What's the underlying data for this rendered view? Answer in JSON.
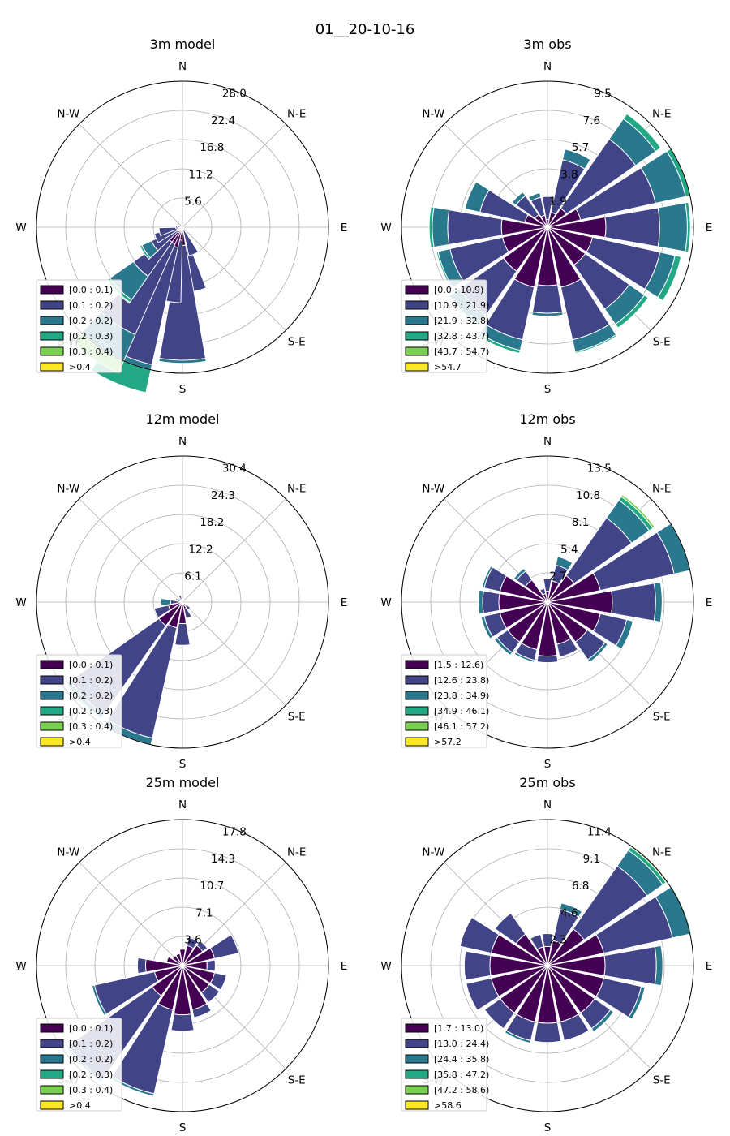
{
  "figure": {
    "title": "01__20-10-16"
  },
  "colors": [
    "#440154",
    "#414487",
    "#2a788e",
    "#22a884",
    "#7ad151",
    "#fde725"
  ],
  "directions": [
    "E",
    "N-E",
    "N",
    "N-W",
    "W",
    "S-W",
    "S",
    "S-E"
  ],
  "chart_data": [
    {
      "type": "windrose",
      "title": "3m model",
      "rticks": [
        "5.6",
        "11.2",
        "16.8",
        "22.4",
        "28.0"
      ],
      "rmax": 28.0,
      "legend": [
        "[0.0 : 0.1)",
        "[0.1 : 0.2)",
        "[0.2 : 0.2)",
        "[0.2 : 0.3)",
        "[0.3 : 0.4)",
        ">0.4"
      ],
      "sectors": [
        {
          "dir": 168.75,
          "v": [
            3.5,
            9.0
          ]
        },
        {
          "dir": 180,
          "v": [
            3.5,
            22.0,
            0.6
          ]
        },
        {
          "dir": 191.25,
          "v": [
            2.5,
            12.0
          ]
        },
        {
          "dir": 202.5,
          "v": [
            4.0,
            23.0,
            5.5,
            0.4
          ]
        },
        {
          "dir": 213.75,
          "v": [
            3.5,
            19.0,
            7.5,
            0.5,
            0.2
          ]
        },
        {
          "dir": 225,
          "v": [
            3.5,
            8.0,
            5.5,
            0.6,
            0.2
          ]
        },
        {
          "dir": 236.25,
          "v": [
            1.0,
            5.5,
            2.0,
            0.4
          ]
        },
        {
          "dir": 247.5,
          "v": [
            1.0,
            4.5
          ]
        },
        {
          "dir": 258.75,
          "v": [
            0.5,
            4.0
          ]
        },
        {
          "dir": 270,
          "v": [
            0.3,
            1.0
          ]
        },
        {
          "dir": 281.25,
          "v": [
            0.3,
            0.7
          ]
        },
        {
          "dir": 0,
          "v": [
            0.2
          ]
        },
        {
          "dir": 22.5,
          "v": [
            0.2
          ]
        },
        {
          "dir": 135,
          "v": [
            0.3,
            0.6
          ]
        },
        {
          "dir": 157.5,
          "v": [
            0.6,
            5.0
          ]
        }
      ]
    },
    {
      "type": "windrose",
      "title": "3m obs",
      "rticks": [
        "1.9",
        "3.8",
        "5.7",
        "7.6",
        "9.5"
      ],
      "rmax": 9.5,
      "legend": [
        "[0.0 : 10.9)",
        "[10.9 : 21.9)",
        "[21.9 : 32.8)",
        "[32.8 : 43.7)",
        "[43.7 : 54.7)",
        ">54.7"
      ],
      "sectors": [
        {
          "dir": 0,
          "v": [
            0.5,
            1.5
          ]
        },
        {
          "dir": 22.5,
          "v": [
            1.0,
            3.5,
            0.7
          ]
        },
        {
          "dir": 45,
          "v": [
            1.5,
            5.5,
            1.6,
            0.4
          ]
        },
        {
          "dir": 67.5,
          "v": [
            2.2,
            5.0,
            2.0,
            0.3
          ]
        },
        {
          "dir": 90,
          "v": [
            3.8,
            3.5,
            1.8,
            0.2
          ]
        },
        {
          "dir": 112.5,
          "v": [
            3.0,
            4.5,
            1.0,
            0.4
          ]
        },
        {
          "dir": 135,
          "v": [
            3.0,
            3.5,
            1.2,
            0.3
          ]
        },
        {
          "dir": 157.5,
          "v": [
            4.0,
            3.5,
            0.8,
            0.1
          ]
        },
        {
          "dir": 180,
          "v": [
            3.8,
            1.8,
            0.2
          ]
        },
        {
          "dir": 202.5,
          "v": [
            4.0,
            3.5,
            0.7,
            0.2
          ]
        },
        {
          "dir": 225,
          "v": [
            3.5,
            3.5,
            0.8
          ]
        },
        {
          "dir": 247.5,
          "v": [
            3.0,
            3.5,
            0.8,
            0.1
          ]
        },
        {
          "dir": 270,
          "v": [
            3.0,
            3.5,
            1.0,
            0.2
          ]
        },
        {
          "dir": 292.5,
          "v": [
            1.5,
            3.0,
            1.0
          ]
        },
        {
          "dir": 315,
          "v": [
            1.0,
            1.5,
            0.3
          ]
        },
        {
          "dir": 337.5,
          "v": [
            0.8,
            1.2,
            0.3
          ]
        }
      ]
    },
    {
      "type": "windrose",
      "title": "12m model",
      "rticks": [
        "6.1",
        "12.2",
        "18.2",
        "24.3",
        "30.4"
      ],
      "rmax": 30.4,
      "legend": [
        "[0.0 : 0.1)",
        "[0.1 : 0.2)",
        "[0.2 : 0.2)",
        "[0.2 : 0.3)",
        "[0.3 : 0.4)",
        ">0.4"
      ],
      "sectors": [
        {
          "dir": 157.5,
          "v": [
            1.5,
            2.0
          ]
        },
        {
          "dir": 180,
          "v": [
            4.5,
            4.5
          ]
        },
        {
          "dir": 202.5,
          "v": [
            5.5,
            23.5,
            1.5,
            0.5
          ]
        },
        {
          "dir": 225,
          "v": [
            6.0,
            22.5,
            1.0,
            0.3
          ]
        },
        {
          "dir": 247.5,
          "v": [
            3.0,
            3.0
          ]
        },
        {
          "dir": 270,
          "v": [
            0.5,
            2.0,
            2.0
          ]
        },
        {
          "dir": 292.5,
          "v": [
            0.5,
            1.0
          ]
        },
        {
          "dir": 337.5,
          "v": [
            0.5,
            1.0
          ]
        },
        {
          "dir": 0,
          "v": [
            0.5,
            0.3
          ]
        },
        {
          "dir": 22.5,
          "v": [
            0.5
          ]
        },
        {
          "dir": 135,
          "v": [
            1.0,
            1.0
          ]
        }
      ]
    },
    {
      "type": "windrose",
      "title": "12m obs",
      "rticks": [
        "2.7",
        "5.4",
        "8.1",
        "10.8",
        "13.5"
      ],
      "rmax": 13.5,
      "legend": [
        "[1.5 : 12.6)",
        "[12.6 : 23.8)",
        "[23.8 : 34.9)",
        "[34.9 : 46.1)",
        "[46.1 : 57.2)",
        ">57.2"
      ],
      "sectors": [
        {
          "dir": 0,
          "v": [
            1.0,
            1.2
          ]
        },
        {
          "dir": 22.5,
          "v": [
            2.0,
            1.5,
            0.8
          ]
        },
        {
          "dir": 45,
          "v": [
            3.0,
            6.5,
            2.0,
            0.4,
            0.2
          ]
        },
        {
          "dir": 67.5,
          "v": [
            5.0,
            7.0,
            1.5,
            0.2
          ]
        },
        {
          "dir": 90,
          "v": [
            6.0,
            4.0,
            0.6
          ]
        },
        {
          "dir": 112.5,
          "v": [
            5.0,
            2.5,
            0.6
          ]
        },
        {
          "dir": 135,
          "v": [
            4.5,
            2.0,
            0.3
          ]
        },
        {
          "dir": 157.5,
          "v": [
            4.0,
            1.2
          ]
        },
        {
          "dir": 180,
          "v": [
            5.0,
            0.6
          ]
        },
        {
          "dir": 202.5,
          "v": [
            4.5,
            1.0,
            0.2
          ]
        },
        {
          "dir": 225,
          "v": [
            4.5,
            1.2,
            0.3
          ]
        },
        {
          "dir": 247.5,
          "v": [
            4.5,
            1.5,
            0.3
          ]
        },
        {
          "dir": 270,
          "v": [
            4.5,
            1.5,
            0.4
          ]
        },
        {
          "dir": 292.5,
          "v": [
            4.5,
            1.5,
            0.2
          ]
        },
        {
          "dir": 315,
          "v": [
            2.5,
            1.0,
            0.3
          ]
        },
        {
          "dir": 337.5,
          "v": [
            0.8,
            0.5
          ]
        }
      ]
    },
    {
      "type": "windrose",
      "title": "25m model",
      "rticks": [
        "3.6",
        "7.1",
        "10.7",
        "14.3",
        "17.8"
      ],
      "rmax": 17.8,
      "legend": [
        "[0.0 : 0.1)",
        "[0.1 : 0.2)",
        "[0.2 : 0.2)",
        "[0.2 : 0.3)",
        "[0.3 : 0.4)",
        ">0.4"
      ],
      "sectors": [
        {
          "dir": 0,
          "v": [
            2.0
          ]
        },
        {
          "dir": 22.5,
          "v": [
            2.5,
            1.0
          ]
        },
        {
          "dir": 45,
          "v": [
            3.0,
            0.7
          ]
        },
        {
          "dir": 67.5,
          "v": [
            4.0,
            3.0
          ]
        },
        {
          "dir": 90,
          "v": [
            3.0,
            1.0
          ]
        },
        {
          "dir": 112.5,
          "v": [
            4.0,
            1.5
          ]
        },
        {
          "dir": 135,
          "v": [
            4.0,
            1.5
          ]
        },
        {
          "dir": 157.5,
          "v": [
            5.5,
            1.0
          ]
        },
        {
          "dir": 180,
          "v": [
            6.0,
            2.0
          ]
        },
        {
          "dir": 202.5,
          "v": [
            5.5,
            10.5,
            0.3
          ]
        },
        {
          "dir": 225,
          "v": [
            4.5,
            12.5,
            0.3
          ]
        },
        {
          "dir": 247.5,
          "v": [
            3.5,
            7.5,
            0.3
          ]
        },
        {
          "dir": 270,
          "v": [
            4.5,
            1.0
          ]
        },
        {
          "dir": 292.5,
          "v": [
            2.0
          ]
        },
        {
          "dir": 315,
          "v": [
            1.5
          ]
        },
        {
          "dir": 337.5,
          "v": [
            1.5
          ]
        }
      ]
    },
    {
      "type": "windrose",
      "title": "25m obs",
      "rticks": [
        "2.3",
        "4.6",
        "6.8",
        "9.1",
        "11.4"
      ],
      "rmax": 11.4,
      "legend": [
        "[1.7 : 13.0)",
        "[13.0 : 24.4)",
        "[24.4 : 35.8)",
        "[35.8 : 47.2)",
        "[47.2 : 58.6)",
        ">58.6"
      ],
      "sectors": [
        {
          "dir": 0,
          "v": [
            1.5,
            1.0
          ]
        },
        {
          "dir": 22.5,
          "v": [
            2.0,
            2.5,
            0.5
          ]
        },
        {
          "dir": 45,
          "v": [
            3.5,
            6.0,
            1.5,
            0.3,
            0.2
          ]
        },
        {
          "dir": 67.5,
          "v": [
            4.5,
            5.5,
            1.5,
            0.3
          ]
        },
        {
          "dir": 90,
          "v": [
            4.5,
            4.0,
            0.5
          ]
        },
        {
          "dir": 112.5,
          "v": [
            4.5,
            3.0,
            0.3
          ]
        },
        {
          "dir": 135,
          "v": [
            4.5,
            1.5,
            0.3
          ]
        },
        {
          "dir": 157.5,
          "v": [
            4.5,
            1.5
          ]
        },
        {
          "dir": 180,
          "v": [
            4.5,
            1.5
          ]
        },
        {
          "dir": 202.5,
          "v": [
            4.5,
            1.5,
            0.2
          ]
        },
        {
          "dir": 225,
          "v": [
            4.5,
            1.5
          ]
        },
        {
          "dir": 247.5,
          "v": [
            4.5,
            2.0
          ]
        },
        {
          "dir": 270,
          "v": [
            4.5,
            2.0
          ]
        },
        {
          "dir": 292.5,
          "v": [
            4.5,
            2.5
          ]
        },
        {
          "dir": 315,
          "v": [
            3.0,
            2.0
          ]
        },
        {
          "dir": 337.5,
          "v": [
            1.5,
            1.0
          ]
        }
      ]
    }
  ]
}
